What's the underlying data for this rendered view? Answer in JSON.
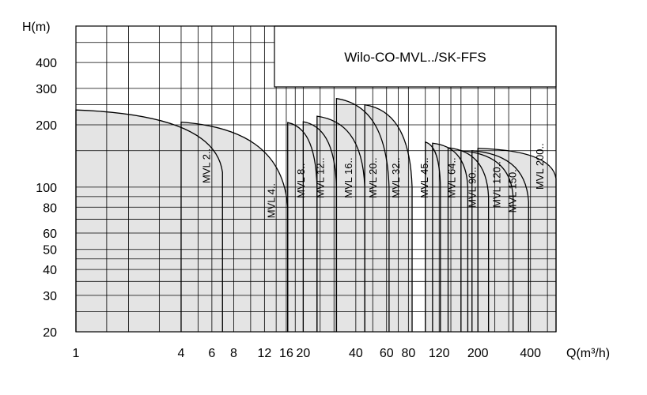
{
  "chart_data": {
    "type": "area",
    "title": "Wilo-CO-MVL../SK-FFS",
    "xlabel": "Q(m³/h)",
    "ylabel": "H(m)",
    "xscale": "log",
    "yscale": "log",
    "xlim": [
      1,
      560
    ],
    "ylim": [
      20,
      600
    ],
    "xticks": [
      1,
      4,
      6,
      8,
      12,
      16,
      20,
      40,
      60,
      80,
      120,
      200,
      400
    ],
    "xtick_labels": [
      "1",
      "4",
      "6",
      "8",
      "12",
      "16",
      "20",
      "40",
      "60",
      "80",
      "120",
      "200",
      "400"
    ],
    "yticks": [
      20,
      30,
      40,
      50,
      60,
      80,
      100,
      200,
      300,
      400
    ],
    "ytick_labels": [
      "20",
      "30",
      "40",
      "50",
      "60",
      "80",
      "100",
      "200",
      "300",
      "400"
    ],
    "grid": true,
    "series": [
      {
        "name": "MVL 2..",
        "x_start": 1,
        "x_end": 6.9,
        "h_start": 236,
        "h_end": 118
      },
      {
        "name": "MVL 4..",
        "x_start": 4,
        "x_end": 16.3,
        "h_start": 206,
        "h_end": 80
      },
      {
        "name": "MVL 8..",
        "x_start": 16.3,
        "x_end": 24,
        "h_start": 205,
        "h_end": 100
      },
      {
        "name": "MVL 12..",
        "x_start": 20,
        "x_end": 31,
        "h_start": 207,
        "h_end": 100
      },
      {
        "name": "MVL 16..",
        "x_start": 24,
        "x_end": 45,
        "h_start": 220,
        "h_end": 100
      },
      {
        "name": "MVL 20..",
        "x_start": 31,
        "x_end": 62,
        "h_start": 268,
        "h_end": 100
      },
      {
        "name": "MVL 32..",
        "x_start": 45,
        "x_end": 84,
        "h_start": 250,
        "h_end": 100
      },
      {
        "name": "MVL 45..",
        "x_start": 100,
        "x_end": 122,
        "h_start": 165,
        "h_end": 100
      },
      {
        "name": "MVL 64..",
        "x_start": 110,
        "x_end": 175,
        "h_start": 163,
        "h_end": 100
      },
      {
        "name": "MVL 90..",
        "x_start": 135,
        "x_end": 230,
        "h_start": 155,
        "h_end": 90
      },
      {
        "name": "MVL 120..",
        "x_start": 160,
        "x_end": 318,
        "h_start": 150,
        "h_end": 90
      },
      {
        "name": "MVL 150..",
        "x_start": 185,
        "x_end": 390,
        "h_start": 150,
        "h_end": 85
      },
      {
        "name": "MVL 200..",
        "x_start": 200,
        "x_end": 560,
        "h_start": 154,
        "h_end": 110
      }
    ]
  }
}
